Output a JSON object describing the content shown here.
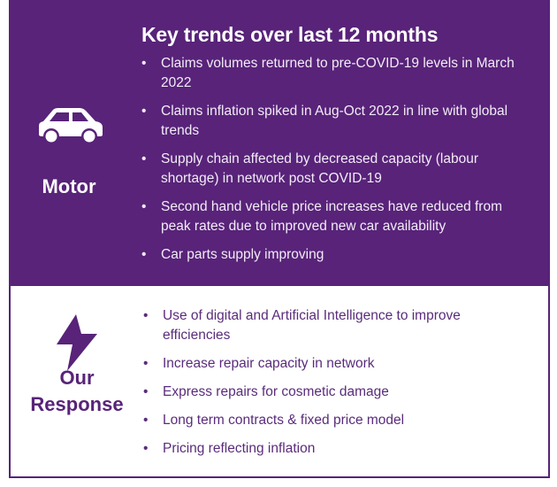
{
  "motor": {
    "title": "Key trends over last 12 months",
    "label": "Motor",
    "icon": "car-icon",
    "bullet": "•",
    "items": [
      "Claims volumes returned to pre-COVID-19 levels in March 2022",
      "Claims inflation spiked in Aug-Oct 2022 in line with global trends",
      "Supply chain affected by decreased capacity (labour shortage) in network post COVID-19",
      "Second hand vehicle price increases have reduced from peak rates due to improved new car availability",
      "Car parts supply improving"
    ]
  },
  "response": {
    "label_line1": "Our",
    "label_line2": "Response",
    "icon": "lightning-bolt-icon",
    "items": [
      "Use of digital and Artificial Intelligence to improve efficiencies",
      "Increase repair capacity in network",
      "Express repairs for cosmetic damage",
      "Long term contracts & fixed price model",
      "Pricing reflecting inflation"
    ]
  },
  "colors": {
    "brand_purple": "#582379",
    "text_white": "#f2ecf6"
  }
}
